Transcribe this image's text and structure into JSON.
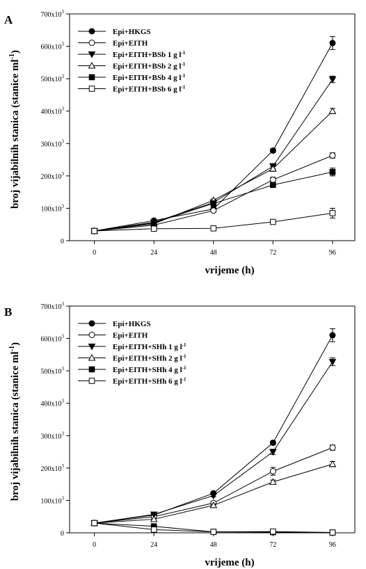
{
  "chart_data": [
    {
      "type": "line",
      "panel": "A",
      "xlabel": "vrijeme (h)",
      "ylabel": "broj vijabilnih stanica (stanice ml",
      "ylabel_sup": "-1",
      "ylabel_close": ")",
      "x": [
        0,
        24,
        48,
        72,
        96
      ],
      "xticks": [
        "0",
        "24",
        "48",
        "72",
        "96"
      ],
      "yticks": [
        {
          "base": "0",
          "sup": ""
        },
        {
          "base": "100x10",
          "sup": "3"
        },
        {
          "base": "200x10",
          "sup": "3"
        },
        {
          "base": "300x10",
          "sup": "3"
        },
        {
          "base": "400x10",
          "sup": "3"
        },
        {
          "base": "500x10",
          "sup": "3"
        },
        {
          "base": "600x10",
          "sup": "3"
        },
        {
          "base": "700x10",
          "sup": "3"
        }
      ],
      "ylim": [
        0,
        700000
      ],
      "legend_position": "top-left",
      "series": [
        {
          "label": "Epi+HKGS",
          "unit": "",
          "marker": "circle",
          "fill": "filled",
          "values": [
            30000,
            62000,
            98000,
            278000,
            610000
          ],
          "errors": [
            0,
            3000,
            4000,
            6000,
            20000
          ]
        },
        {
          "label": "Epi+EITH",
          "unit": "",
          "marker": "circle",
          "fill": "open",
          "values": [
            30000,
            48000,
            93000,
            188000,
            263000
          ],
          "errors": [
            0,
            3000,
            4000,
            8000,
            8000
          ]
        },
        {
          "label": "Epi+EITH+BSb 1 g l",
          "unit": "-1",
          "marker": "triangle-down",
          "fill": "filled",
          "values": [
            30000,
            57000,
            118000,
            230000,
            498000
          ],
          "errors": [
            0,
            3000,
            4000,
            8000,
            10000
          ]
        },
        {
          "label": "Epi+EITH+BSb 2 g l",
          "unit": "-1",
          "marker": "triangle-up",
          "fill": "open",
          "values": [
            30000,
            52000,
            125000,
            222000,
            400000
          ],
          "errors": [
            0,
            3000,
            4000,
            8000,
            8000
          ]
        },
        {
          "label": "Epi+EITH+BSb 4 g l",
          "unit": "-1",
          "marker": "square",
          "fill": "filled",
          "values": [
            30000,
            55000,
            115000,
            172000,
            212000
          ],
          "errors": [
            0,
            3000,
            4000,
            6000,
            12000
          ]
        },
        {
          "label": "Epi+EITH+BSb 6 g l",
          "unit": "-1",
          "marker": "square",
          "fill": "open",
          "values": [
            30000,
            37000,
            38000,
            58000,
            85000
          ],
          "errors": [
            0,
            3000,
            3000,
            4000,
            15000
          ]
        }
      ]
    },
    {
      "type": "line",
      "panel": "B",
      "xlabel": "vrijeme (h)",
      "ylabel": "broj vijabilnih stanica (stanice ml",
      "ylabel_sup": "-1",
      "ylabel_close": ")",
      "x": [
        0,
        24,
        48,
        72,
        96
      ],
      "xticks": [
        "0",
        "24",
        "48",
        "72",
        "96"
      ],
      "yticks": [
        {
          "base": "0",
          "sup": ""
        },
        {
          "base": "100x10",
          "sup": "3"
        },
        {
          "base": "200x10",
          "sup": "3"
        },
        {
          "base": "300x10",
          "sup": "3"
        },
        {
          "base": "400x10",
          "sup": "3"
        },
        {
          "base": "500x10",
          "sup": "3"
        },
        {
          "base": "600x10",
          "sup": "3"
        },
        {
          "base": "700x10",
          "sup": "3"
        }
      ],
      "ylim": [
        0,
        700000
      ],
      "legend_position": "top-left",
      "series": [
        {
          "label": "Epi+HKGS",
          "unit": "",
          "marker": "circle",
          "fill": "filled",
          "values": [
            30000,
            55000,
            122000,
            278000,
            610000
          ],
          "errors": [
            0,
            3000,
            4000,
            6000,
            20000
          ]
        },
        {
          "label": "Epi+EITH",
          "unit": "",
          "marker": "circle",
          "fill": "open",
          "values": [
            30000,
            50000,
            92000,
            190000,
            263000
          ],
          "errors": [
            0,
            3000,
            4000,
            12000,
            8000
          ]
        },
        {
          "label": "Epi+EITH+SHh 1 g l",
          "unit": "-1",
          "marker": "triangle-down",
          "fill": "filled",
          "values": [
            30000,
            57000,
            115000,
            250000,
            528000
          ],
          "errors": [
            0,
            3000,
            4000,
            8000,
            12000
          ]
        },
        {
          "label": "Epi+EITH+SHh 2 g l",
          "unit": "-1",
          "marker": "triangle-up",
          "fill": "open",
          "values": [
            30000,
            42000,
            85000,
            157000,
            212000
          ],
          "errors": [
            0,
            3000,
            4000,
            6000,
            8000
          ]
        },
        {
          "label": "Epi+EITH+SHh 4 g l",
          "unit": "-1",
          "marker": "square",
          "fill": "filled",
          "values": [
            30000,
            20000,
            3000,
            2000,
            1000
          ],
          "errors": [
            0,
            3000,
            1000,
            1000,
            500
          ]
        },
        {
          "label": "Epi+EITH+SHh 6 g l",
          "unit": "-1",
          "marker": "square",
          "fill": "open",
          "values": [
            30000,
            10000,
            3000,
            4000,
            1000
          ],
          "errors": [
            0,
            3000,
            1000,
            1000,
            500
          ]
        }
      ]
    }
  ]
}
